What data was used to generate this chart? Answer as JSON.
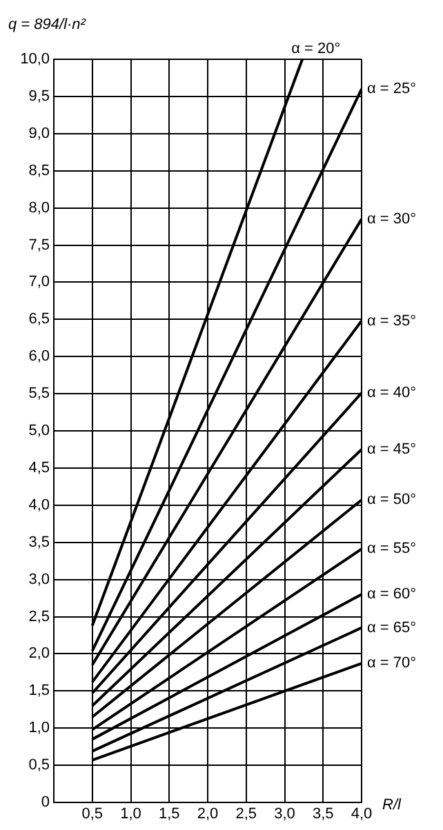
{
  "chart_data": {
    "type": "line",
    "ylabel": "q = 894/l·n²",
    "xlabel": "R/l",
    "x": [
      0.5,
      4.0
    ],
    "series": [
      {
        "name": "α = 20°",
        "color": "#000000",
        "x": [
          0.5,
          3.23
        ],
        "values": [
          2.38,
          10.0
        ]
      },
      {
        "name": "α = 25°",
        "color": "#000000",
        "values": [
          2.04,
          9.6
        ]
      },
      {
        "name": "α = 30°",
        "color": "#000000",
        "values": [
          1.85,
          7.85
        ]
      },
      {
        "name": "α = 35°",
        "color": "#000000",
        "values": [
          1.62,
          6.48
        ]
      },
      {
        "name": "α = 40°",
        "color": "#000000",
        "values": [
          1.47,
          5.51
        ]
      },
      {
        "name": "α = 45°",
        "color": "#000000",
        "values": [
          1.3,
          4.75
        ]
      },
      {
        "name": "α = 50°",
        "color": "#000000",
        "values": [
          1.15,
          4.07
        ]
      },
      {
        "name": "α = 55°",
        "color": "#000000",
        "values": [
          0.98,
          3.41
        ]
      },
      {
        "name": "α = 60°",
        "color": "#000000",
        "values": [
          0.85,
          2.8
        ]
      },
      {
        "name": "α = 65°",
        "color": "#000000",
        "values": [
          0.69,
          2.35
        ]
      },
      {
        "name": "α = 70°",
        "color": "#000000",
        "values": [
          0.57,
          1.87
        ]
      }
    ],
    "xlim": [
      0,
      4
    ],
    "xticks": [
      {
        "value": 0.5,
        "label": "0,5"
      },
      {
        "value": 1,
        "label": "1,0"
      },
      {
        "value": 1.5,
        "label": "1,5"
      },
      {
        "value": 2,
        "label": "2,0"
      },
      {
        "value": 2.5,
        "label": "2,5"
      },
      {
        "value": 3,
        "label": "3,0"
      },
      {
        "value": 3.5,
        "label": "3,5"
      },
      {
        "value": 4,
        "label": "4,0"
      }
    ],
    "ylim": [
      0,
      10
    ],
    "yticks": [
      0,
      {
        "value": 0.5,
        "label": "0,5"
      },
      {
        "value": 1,
        "label": "1,0"
      },
      {
        "value": 1.5,
        "label": "1,5"
      },
      {
        "value": 2,
        "label": "2,0"
      },
      {
        "value": 2.5,
        "label": "2,5"
      },
      {
        "value": 3,
        "label": "3,0"
      },
      {
        "value": 3.5,
        "label": "3,5"
      },
      {
        "value": 4,
        "label": "4,0"
      },
      {
        "value": 4.5,
        "label": "4,5"
      },
      {
        "value": 5,
        "label": "5,0"
      },
      {
        "value": 5.5,
        "label": "5,5"
      },
      {
        "value": 6,
        "label": "6,0"
      },
      {
        "value": 6.5,
        "label": "6,5"
      },
      {
        "value": 7,
        "label": "7,0"
      },
      {
        "value": 7.5,
        "label": "7,5"
      },
      {
        "value": 8,
        "label": "8,0"
      },
      {
        "value": 8.5,
        "label": "8,5"
      },
      {
        "value": 9,
        "label": "9,0"
      },
      {
        "value": 9.5,
        "label": "9,5"
      },
      {
        "value": 10,
        "label": "10,0"
      }
    ],
    "grid": true,
    "legend": false,
    "marker": "none",
    "line_style": "solid"
  }
}
